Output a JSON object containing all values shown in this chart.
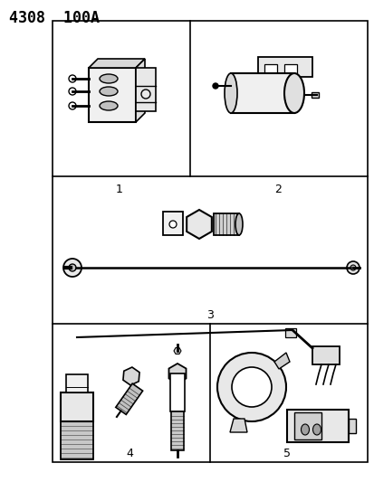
{
  "title": "4308  100A",
  "background_color": "#ffffff",
  "line_color": "#000000",
  "label_1": "1",
  "label_2": "2",
  "label_3": "3",
  "label_4": "4",
  "label_5": "5",
  "fig_width": 4.14,
  "fig_height": 5.33,
  "dpi": 100
}
